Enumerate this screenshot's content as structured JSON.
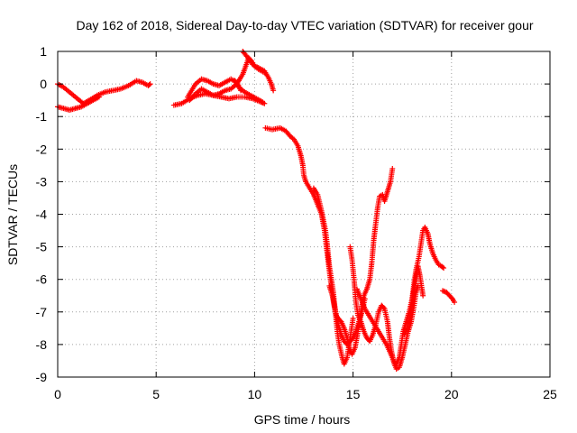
{
  "chart_data": {
    "type": "scatter",
    "title": "Day 162 of 2018, Sidereal Day-to-day VTEC variation (SDTVAR) for receiver gour",
    "xlabel": "GPS time / hours",
    "ylabel": "SDTVAR / TECUs",
    "xlim": [
      0,
      25
    ],
    "ylim": [
      -9,
      1
    ],
    "x_ticks": [
      0,
      5,
      10,
      15,
      20,
      25
    ],
    "y_ticks": [
      -9,
      -8,
      -7,
      -6,
      -5,
      -4,
      -3,
      -2,
      -1,
      0,
      1
    ],
    "grid": true,
    "marker": "+",
    "series": [
      {
        "name": "SDTVAR",
        "color": "#ff0000",
        "segments": [
          [
            [
              0,
              0
            ],
            [
              0.3,
              -0.1
            ],
            [
              0.5,
              -0.2
            ],
            [
              0.8,
              -0.35
            ],
            [
              1.1,
              -0.5
            ],
            [
              1.3,
              -0.6
            ],
            [
              1.6,
              -0.5
            ],
            [
              2.0,
              -0.35
            ],
            [
              2.4,
              -0.25
            ],
            [
              2.8,
              -0.2
            ],
            [
              3.2,
              -0.15
            ],
            [
              3.6,
              -0.05
            ],
            [
              4.0,
              0.1
            ],
            [
              4.3,
              0.05
            ],
            [
              4.6,
              -0.05
            ],
            [
              4.7,
              0
            ]
          ],
          [
            [
              0,
              -0.7
            ],
            [
              0.3,
              -0.75
            ],
            [
              0.6,
              -0.8
            ],
            [
              0.9,
              -0.75
            ],
            [
              1.2,
              -0.7
            ],
            [
              1.5,
              -0.6
            ],
            [
              1.8,
              -0.5
            ],
            [
              2.1,
              -0.4
            ]
          ],
          [
            [
              5.9,
              -0.65
            ],
            [
              6.3,
              -0.6
            ],
            [
              6.7,
              -0.45
            ],
            [
              7.1,
              -0.35
            ],
            [
              7.5,
              -0.3
            ],
            [
              7.9,
              -0.35
            ],
            [
              8.3,
              -0.4
            ],
            [
              8.7,
              -0.45
            ],
            [
              9.1,
              -0.4
            ],
            [
              9.5,
              -0.4
            ],
            [
              9.9,
              -0.45
            ],
            [
              10.3,
              -0.55
            ],
            [
              10.5,
              -0.6
            ]
          ],
          [
            [
              6.6,
              -0.4
            ],
            [
              6.8,
              -0.2
            ],
            [
              7.0,
              0
            ],
            [
              7.3,
              0.15
            ],
            [
              7.6,
              0.1
            ],
            [
              7.9,
              0
            ],
            [
              8.2,
              -0.05
            ],
            [
              8.5,
              0.05
            ],
            [
              8.8,
              0.15
            ],
            [
              9.1,
              0.05
            ],
            [
              9.3,
              -0.2
            ]
          ],
          [
            [
              6.7,
              -0.5
            ],
            [
              7.0,
              -0.3
            ],
            [
              7.3,
              -0.15
            ],
            [
              7.6,
              -0.25
            ],
            [
              7.9,
              -0.35
            ],
            [
              8.2,
              -0.3
            ],
            [
              8.5,
              -0.2
            ],
            [
              8.8,
              -0.15
            ],
            [
              9.0,
              -0.05
            ],
            [
              9.2,
              0.1
            ],
            [
              9.4,
              0.3
            ],
            [
              9.55,
              0.55
            ],
            [
              9.7,
              0.8
            ],
            [
              9.85,
              0.7
            ],
            [
              10.0,
              0.55
            ],
            [
              10.2,
              0.5
            ],
            [
              10.5,
              0.4
            ],
            [
              10.7,
              0.2
            ],
            [
              10.85,
              0
            ],
            [
              10.95,
              -0.2
            ]
          ],
          [
            [
              9.4,
              1
            ],
            [
              9.6,
              0.85
            ],
            [
              9.9,
              0.6
            ],
            [
              10.2,
              0.45
            ],
            [
              10.5,
              0.35
            ]
          ],
          [
            [
              9.0,
              0.1
            ],
            [
              9.2,
              -0.1
            ],
            [
              9.5,
              -0.25
            ],
            [
              9.8,
              -0.35
            ],
            [
              10.1,
              -0.45
            ],
            [
              10.4,
              -0.55
            ]
          ],
          [
            [
              10.55,
              -1.35
            ],
            [
              10.9,
              -1.4
            ],
            [
              11.3,
              -1.35
            ],
            [
              11.6,
              -1.45
            ],
            [
              11.8,
              -1.6
            ],
            [
              12.0,
              -1.7
            ],
            [
              12.2,
              -1.9
            ],
            [
              12.35,
              -2.2
            ],
            [
              12.45,
              -2.5
            ],
            [
              12.5,
              -2.8
            ],
            [
              12.6,
              -3.0
            ],
            [
              12.8,
              -3.2
            ],
            [
              13.0,
              -3.4
            ],
            [
              13.2,
              -3.7
            ],
            [
              13.4,
              -4.0
            ],
            [
              13.55,
              -4.5
            ],
            [
              13.65,
              -5.0
            ],
            [
              13.75,
              -5.5
            ],
            [
              13.85,
              -6.0
            ],
            [
              13.95,
              -6.4
            ],
            [
              14.05,
              -6.8
            ],
            [
              14.15,
              -7.1
            ],
            [
              14.25,
              -7.2
            ],
            [
              14.4,
              -7.3
            ],
            [
              14.55,
              -7.5
            ],
            [
              14.7,
              -7.8
            ],
            [
              14.8,
              -8.1
            ],
            [
              14.95,
              -8.3
            ],
            [
              15.1,
              -8.1
            ],
            [
              15.25,
              -7.6
            ],
            [
              15.4,
              -7.0
            ],
            [
              15.55,
              -6.5
            ],
            [
              15.7,
              -6.3
            ],
            [
              15.85,
              -6.0
            ],
            [
              15.95,
              -5.5
            ],
            [
              16.05,
              -4.8
            ],
            [
              16.15,
              -4.3
            ],
            [
              16.25,
              -3.8
            ],
            [
              16.35,
              -3.45
            ],
            [
              16.5,
              -3.4
            ],
            [
              16.6,
              -3.6
            ],
            [
              16.7,
              -3.4
            ],
            [
              16.8,
              -3.2
            ],
            [
              16.9,
              -3.0
            ],
            [
              17.0,
              -2.6
            ]
          ],
          [
            [
              13.0,
              -3.2
            ],
            [
              13.2,
              -3.4
            ],
            [
              13.4,
              -3.9
            ],
            [
              13.6,
              -4.5
            ],
            [
              13.7,
              -5.0
            ],
            [
              13.8,
              -5.6
            ],
            [
              13.9,
              -6.0
            ],
            [
              14.0,
              -6.4
            ],
            [
              14.1,
              -7.0
            ],
            [
              14.2,
              -7.6
            ],
            [
              14.3,
              -8.0
            ],
            [
              14.45,
              -8.4
            ],
            [
              14.55,
              -8.6
            ],
            [
              14.7,
              -8.4
            ],
            [
              14.85,
              -7.8
            ],
            [
              15.0,
              -7.2
            ]
          ],
          [
            [
              13.8,
              -6.2
            ],
            [
              13.95,
              -6.5
            ],
            [
              14.1,
              -7.0
            ],
            [
              14.25,
              -7.4
            ],
            [
              14.4,
              -7.7
            ],
            [
              14.55,
              -7.9
            ],
            [
              14.7,
              -8.0
            ],
            [
              14.85,
              -7.9
            ],
            [
              15.0,
              -7.8
            ],
            [
              15.15,
              -7.6
            ],
            [
              15.3,
              -7.3
            ],
            [
              15.45,
              -7.0
            ],
            [
              15.6,
              -6.6
            ]
          ],
          [
            [
              14.85,
              -5.0
            ],
            [
              14.95,
              -5.4
            ],
            [
              15.05,
              -6.0
            ],
            [
              15.15,
              -6.7
            ],
            [
              15.25,
              -7.1
            ],
            [
              15.4,
              -7.3
            ],
            [
              15.55,
              -7.6
            ],
            [
              15.7,
              -7.8
            ],
            [
              15.85,
              -7.9
            ],
            [
              16.0,
              -7.7
            ],
            [
              16.15,
              -7.4
            ],
            [
              16.3,
              -7.0
            ],
            [
              16.45,
              -6.8
            ],
            [
              16.6,
              -6.9
            ],
            [
              16.75,
              -7.3
            ],
            [
              16.85,
              -7.8
            ],
            [
              16.95,
              -8.2
            ],
            [
              17.05,
              -8.5
            ],
            [
              17.2,
              -8.6
            ],
            [
              17.35,
              -8.4
            ],
            [
              17.45,
              -8.0
            ],
            [
              17.55,
              -7.6
            ],
            [
              17.7,
              -7.3
            ],
            [
              17.85,
              -7.0
            ],
            [
              18.0,
              -6.6
            ],
            [
              18.1,
              -6.1
            ],
            [
              18.2,
              -5.7
            ],
            [
              18.35,
              -5.3
            ],
            [
              18.45,
              -4.9
            ],
            [
              18.55,
              -4.5
            ],
            [
              18.65,
              -4.4
            ],
            [
              18.8,
              -4.6
            ],
            [
              18.9,
              -4.9
            ],
            [
              19.05,
              -5.2
            ],
            [
              19.2,
              -5.4
            ],
            [
              19.35,
              -5.55
            ],
            [
              19.5,
              -5.6
            ],
            [
              19.6,
              -5.65
            ]
          ],
          [
            [
              15.2,
              -6.3
            ],
            [
              15.4,
              -6.6
            ],
            [
              15.6,
              -6.9
            ],
            [
              15.8,
              -7.1
            ],
            [
              16.0,
              -7.3
            ],
            [
              16.2,
              -7.5
            ],
            [
              16.4,
              -7.7
            ],
            [
              16.55,
              -7.85
            ],
            [
              16.7,
              -8.0
            ],
            [
              16.85,
              -8.2
            ],
            [
              17.0,
              -8.4
            ],
            [
              17.1,
              -8.6
            ],
            [
              17.2,
              -8.75
            ],
            [
              17.35,
              -8.7
            ],
            [
              17.5,
              -8.4
            ],
            [
              17.65,
              -8.0
            ],
            [
              17.8,
              -7.6
            ],
            [
              17.95,
              -7.3
            ],
            [
              18.1,
              -6.8
            ],
            [
              18.2,
              -6.4
            ],
            [
              18.3,
              -6.2
            ]
          ],
          [
            [
              17.6,
              -7.7
            ],
            [
              17.75,
              -7.5
            ],
            [
              17.9,
              -7.1
            ],
            [
              18.0,
              -6.7
            ],
            [
              18.1,
              -6.3
            ],
            [
              18.2,
              -5.9
            ],
            [
              18.3,
              -5.6
            ],
            [
              18.4,
              -5.9
            ],
            [
              18.5,
              -6.3
            ],
            [
              18.55,
              -6.5
            ]
          ],
          [
            [
              19.55,
              -6.35
            ],
            [
              19.75,
              -6.4
            ],
            [
              19.9,
              -6.5
            ],
            [
              20.05,
              -6.6
            ],
            [
              20.15,
              -6.7
            ]
          ]
        ]
      }
    ]
  }
}
